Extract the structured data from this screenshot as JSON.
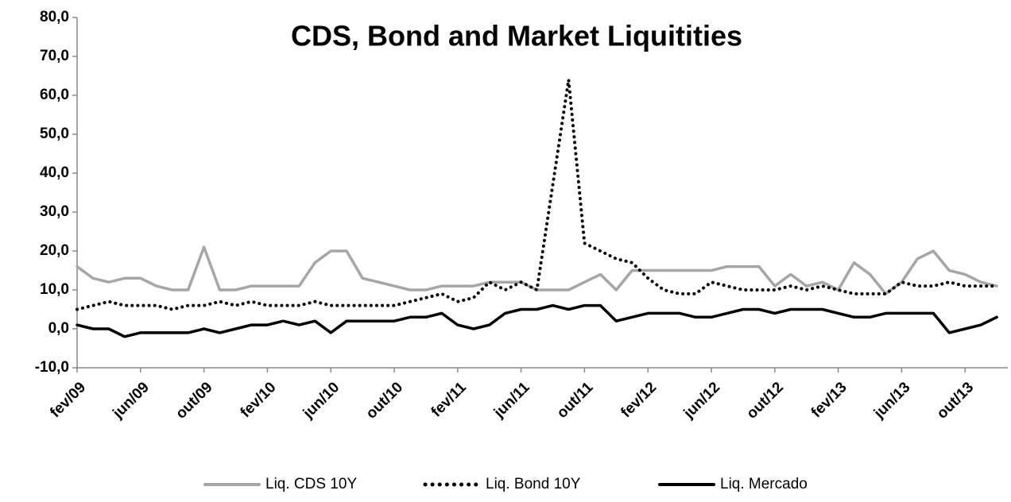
{
  "chart_data": {
    "type": "line",
    "title": "CDS, Bond and Market Liquitities",
    "categories": [
      "fev/09",
      null,
      null,
      null,
      "jun/09",
      null,
      null,
      null,
      "out/09",
      null,
      null,
      null,
      "fev/10",
      null,
      null,
      null,
      "jun/10",
      null,
      null,
      null,
      "out/10",
      null,
      null,
      null,
      "fev/11",
      null,
      null,
      null,
      "jun/11",
      null,
      null,
      null,
      "out/11",
      null,
      null,
      null,
      "fev/12",
      null,
      null,
      null,
      "jun/12",
      null,
      null,
      null,
      "out/12",
      null,
      null,
      null,
      "fev/13",
      null,
      null,
      null,
      "jun/13",
      null,
      null,
      null,
      "out/13",
      null,
      null
    ],
    "series": [
      {
        "name": "Liq. CDS 10Y",
        "color": "#a6a6a6",
        "style": "solid",
        "values": [
          16,
          13,
          12,
          13,
          13,
          11,
          10,
          10,
          21,
          10,
          10,
          11,
          11,
          11,
          11,
          17,
          20,
          20,
          13,
          12,
          11,
          10,
          10,
          11,
          11,
          11,
          12,
          12,
          12,
          10,
          10,
          10,
          12,
          14,
          10,
          15,
          15,
          15,
          15,
          15,
          15,
          16,
          16,
          16,
          11,
          14,
          11,
          12,
          10,
          17,
          14,
          9,
          12,
          18,
          20,
          15,
          14,
          12,
          11
        ]
      },
      {
        "name": "Liq. Bond 10Y",
        "color": "#000000",
        "style": "dotted",
        "values": [
          5,
          6,
          7,
          6,
          6,
          6,
          5,
          6,
          6,
          7,
          6,
          7,
          6,
          6,
          6,
          7,
          6,
          6,
          6,
          6,
          6,
          7,
          8,
          9,
          7,
          8,
          12,
          10,
          12,
          10,
          37,
          64,
          22,
          20,
          18,
          17,
          13,
          10,
          9,
          9,
          12,
          11,
          10,
          10,
          10,
          11,
          10,
          11,
          10,
          9,
          9,
          9,
          12,
          11,
          11,
          12,
          11,
          11,
          11
        ]
      },
      {
        "name": "Liq. Mercado",
        "color": "#000000",
        "style": "solid",
        "values": [
          1,
          0,
          0,
          -2,
          -1,
          -1,
          -1,
          -1,
          0,
          -1,
          0,
          1,
          1,
          2,
          1,
          2,
          -1,
          2,
          2,
          2,
          2,
          3,
          3,
          4,
          1,
          0,
          1,
          4,
          5,
          5,
          6,
          5,
          6,
          6,
          2,
          3,
          4,
          4,
          4,
          3,
          3,
          4,
          5,
          5,
          4,
          5,
          5,
          5,
          4,
          3,
          3,
          4,
          4,
          4,
          4,
          -1,
          0,
          1,
          3
        ]
      }
    ],
    "ylim": [
      -10,
      80
    ],
    "yticks": [
      {
        "value": -10,
        "label": "-10,0"
      },
      {
        "value": 0,
        "label": "0,0"
      },
      {
        "value": 10,
        "label": "10,0"
      },
      {
        "value": 20,
        "label": "20,0"
      },
      {
        "value": 30,
        "label": "30,0"
      },
      {
        "value": 40,
        "label": "40,0"
      },
      {
        "value": 50,
        "label": "50,0"
      },
      {
        "value": 60,
        "label": "60,0"
      },
      {
        "value": 70,
        "label": "70,0"
      },
      {
        "value": 80,
        "label": "80,0"
      }
    ],
    "legend": "bottom"
  }
}
